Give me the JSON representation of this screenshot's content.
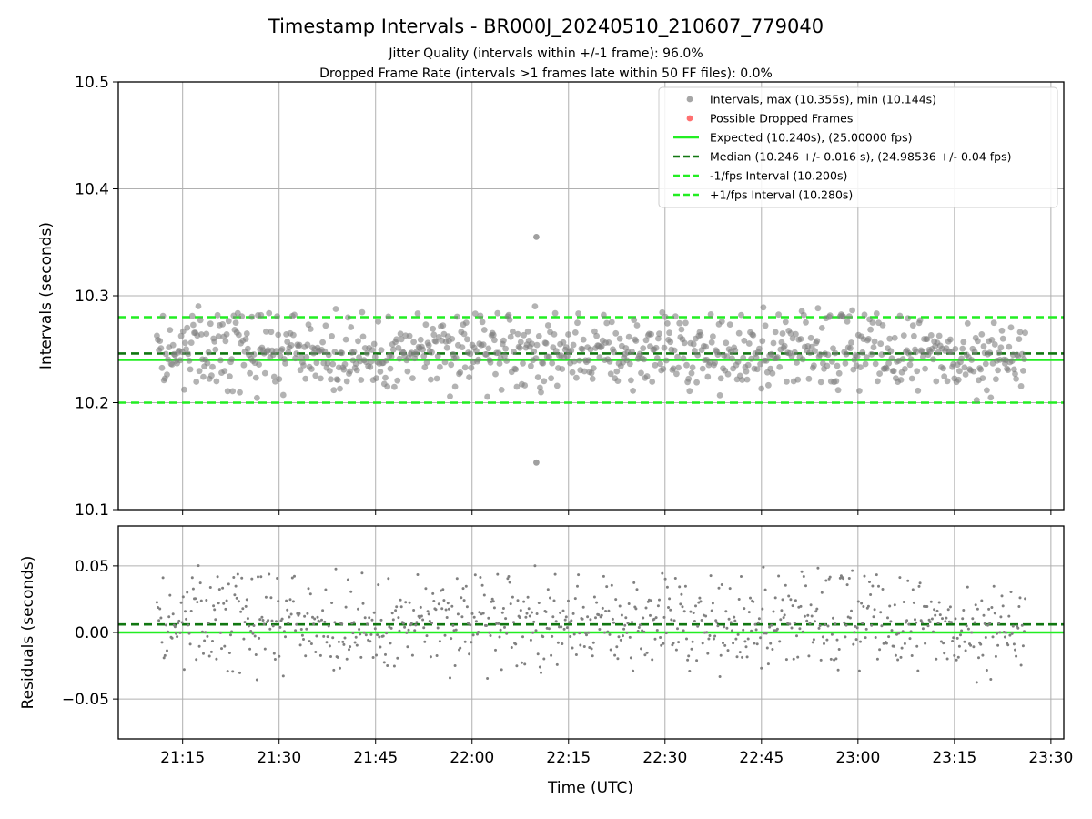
{
  "figure": {
    "title": "Timestamp Intervals - BR000J_20240510_210607_779040",
    "subtitle_1": "Jitter Quality (intervals within +/-1 frame): 96.0%",
    "subtitle_2": "Dropped Frame Rate (intervals >1 frames late within 50 FF files): 0.0%"
  },
  "colors": {
    "points": "#808080",
    "dropped": "#ff3333",
    "expected": "#22ee22",
    "median": "#117711",
    "fps_interval": "#22ee22",
    "grid": "#b0b0b0"
  },
  "chart_data": [
    {
      "type": "scatter",
      "xlabel": "",
      "ylabel": "Intervals (seconds)",
      "ylim": [
        10.1,
        10.5
      ],
      "xlim": [
        "21:05",
        "23:32"
      ],
      "grid": true,
      "legend_position": "top-right",
      "yticks": [
        "10.1",
        "10.2",
        "10.3",
        "10.4",
        "10.5"
      ],
      "series": [
        {
          "name": "Intervals, max (10.355s), min (10.144s)",
          "kind": "points",
          "x_range": [
            "21:11",
            "23:26"
          ],
          "count": 860,
          "y_center": 10.246,
          "y_spread": 0.02,
          "outliers": [
            {
              "x": "22:10",
              "y": 10.355
            },
            {
              "x": "22:10",
              "y": 10.144
            }
          ]
        },
        {
          "name": "Possible Dropped Frames",
          "kind": "points",
          "values": []
        },
        {
          "name": "Expected (10.240s), (25.00000 fps)",
          "kind": "hline",
          "y": 10.24
        },
        {
          "name": "Median (10.246 +/- 0.016 s), (24.98536 +/- 0.04 fps)",
          "kind": "hline-dashed",
          "y": 10.246
        },
        {
          "name": "-1/fps Interval (10.200s)",
          "kind": "hline-dashed",
          "y": 10.2
        },
        {
          "name": "+1/fps Interval (10.280s)",
          "kind": "hline-dashed",
          "y": 10.28
        }
      ]
    },
    {
      "type": "scatter",
      "xlabel": "Time (UTC)",
      "ylabel": "Residuals (seconds)",
      "ylim": [
        -0.08,
        0.08
      ],
      "xlim": [
        "21:05",
        "23:32"
      ],
      "grid": true,
      "yticks": [
        "0.05",
        "0.00",
        "−0.05"
      ],
      "xticks": [
        "21:15",
        "21:30",
        "21:45",
        "22:00",
        "22:15",
        "22:30",
        "22:45",
        "23:00",
        "23:15",
        "23:30"
      ],
      "series": [
        {
          "kind": "points",
          "x_range": [
            "21:11",
            "23:26"
          ],
          "y_center": 0.006,
          "y_spread": 0.02
        },
        {
          "kind": "hline",
          "y": 0.0
        },
        {
          "kind": "hline-dashed",
          "y": 0.006
        }
      ]
    }
  ]
}
